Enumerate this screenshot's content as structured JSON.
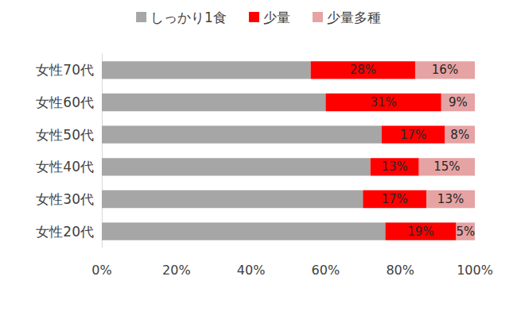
{
  "chart_data": {
    "type": "bar",
    "orientation": "horizontal",
    "stacked": true,
    "legend": "top",
    "grid": false,
    "categories": [
      "女性70代",
      "女性60代",
      "女性50代",
      "女性40代",
      "女性30代",
      "女性20代"
    ],
    "series": [
      {
        "name": "しっかり1食",
        "color": "#a6a6a6",
        "data_labels": false,
        "values": [
          56,
          60,
          75,
          72,
          70,
          76
        ]
      },
      {
        "name": "少量",
        "color": "#ff0000",
        "data_labels": true,
        "values": [
          28,
          31,
          17,
          13,
          17,
          19
        ],
        "value_labels": [
          "28%",
          "31%",
          "17%",
          "13%",
          "17%",
          "19%"
        ]
      },
      {
        "name": "少量多種",
        "color": "#e6a3a3",
        "data_labels": true,
        "values": [
          16,
          9,
          8,
          15,
          13,
          5
        ],
        "value_labels": [
          "16%",
          "9%",
          "8%",
          "15%",
          "13%",
          "5%"
        ]
      }
    ],
    "xlim": [
      0,
      100
    ],
    "xticks": [
      {
        "value": 0,
        "label": "0%"
      },
      {
        "value": 20,
        "label": "20%"
      },
      {
        "value": 40,
        "label": "40%"
      },
      {
        "value": 60,
        "label": "60%"
      },
      {
        "value": 80,
        "label": "80%"
      },
      {
        "value": 100,
        "label": "100%"
      }
    ]
  }
}
